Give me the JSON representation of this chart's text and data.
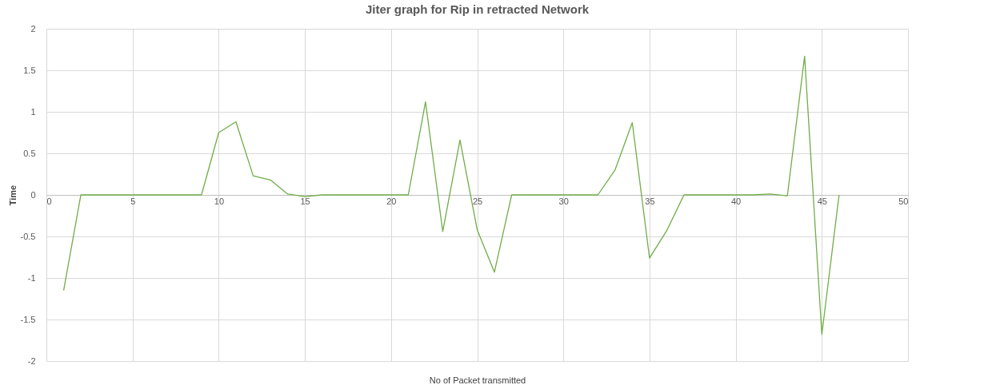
{
  "chart_data": {
    "type": "line",
    "title": "Jiter graph for Rip in retracted Network",
    "xlabel": "No of Packet transmitted",
    "ylabel": "Time",
    "x": [
      1,
      2,
      3,
      4,
      5,
      6,
      7,
      8,
      9,
      10,
      11,
      12,
      13,
      14,
      15,
      16,
      17,
      18,
      19,
      20,
      21,
      22,
      23,
      24,
      25,
      26,
      27,
      28,
      29,
      30,
      31,
      32,
      33,
      34,
      35,
      36,
      37,
      38,
      39,
      40,
      41,
      42,
      43,
      44,
      45,
      46
    ],
    "series": [
      {
        "color": "#70ad47",
        "values": [
          -1.15,
          0,
          0,
          0,
          0,
          0,
          0,
          0,
          0,
          0.75,
          0.88,
          0.23,
          0.18,
          0.01,
          -0.02,
          0,
          0,
          0,
          0,
          0,
          0,
          1.12,
          -0.44,
          0.66,
          -0.42,
          -0.93,
          0,
          0,
          0,
          0,
          0,
          0,
          0.3,
          0.87,
          -0.76,
          -0.43,
          0,
          0,
          0,
          0,
          0,
          0.01,
          -0.01,
          1.67,
          -1.68,
          0
        ]
      }
    ],
    "xlim": [
      0,
      50
    ],
    "xticks": [
      0,
      5,
      10,
      15,
      20,
      25,
      30,
      35,
      40,
      45,
      50
    ],
    "ylim": [
      -2,
      2
    ],
    "yticks": [
      -2,
      -1.5,
      -1,
      -0.5,
      0,
      0.5,
      1,
      1.5,
      2
    ],
    "grid": true,
    "marker": "none",
    "line_style": "solid"
  }
}
